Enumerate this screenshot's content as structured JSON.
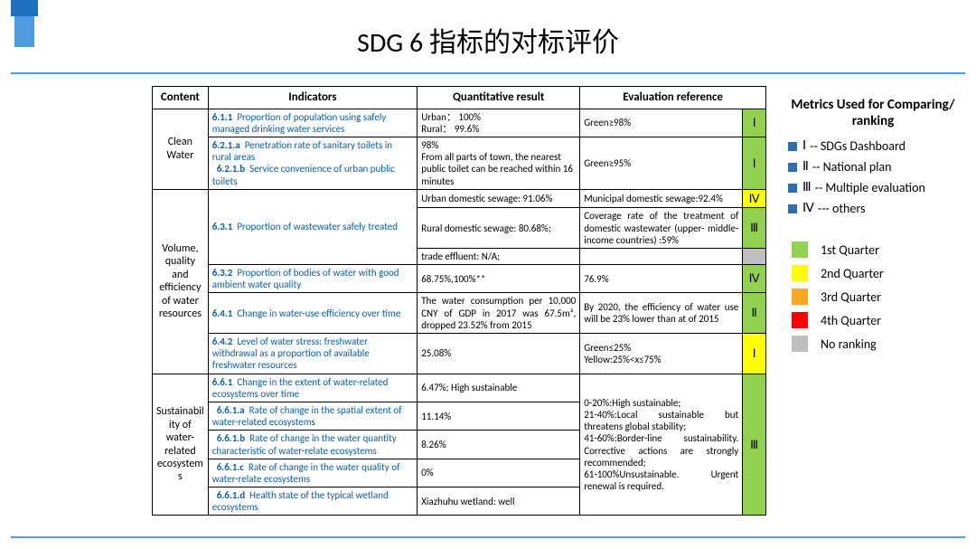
{
  "title": "SDG 6 指标的对标评价",
  "columns": [
    "Content",
    "Indicators",
    "Quantitative result",
    "Evaluation reference"
  ],
  "categories": {
    "cat1": "Clean Water",
    "cat2": "Volume, quality and  efficiency of water resources",
    "cat3": "Sustainability of water-related ecosystems"
  },
  "rows": {
    "r1": {
      "code": "6.1.1",
      "ind": "Proportion of population using safely managed drinking water services",
      "res": "Urban：  100%\nRural：  99.6%",
      "eval": "Green≥98%",
      "tag": "Ⅰ",
      "tag_bg": "bg-green"
    },
    "r2": {
      "code_a": "6.2.1.a",
      "ind_a": "Penetration  rate of sanitary toilets in rural areas",
      "code_b": "6.2.1.b",
      "ind_b": "Service convenience of urban public toilets",
      "res": "98%\nFrom all parts of town, the nearest public toilet can be reached within 16 minutes",
      "eval": "Green≥95%",
      "tag": "Ⅰ",
      "tag_bg": "bg-green"
    },
    "r3a": {
      "code": "6.3.1",
      "ind": "Proportion of wastewater safely treated",
      "res": "Urban domestic sewage: 91.06%",
      "eval": "Municipal domestic sewage:92.4%",
      "tag": "Ⅳ",
      "tag_bg": "bg-yellow"
    },
    "r3b": {
      "res": "Rural domestic sewage: 80.68%;",
      "eval": "Coverage rate of the treatment of domestic wastewater (upper- middle-income countries) :59%",
      "tag": "Ⅲ",
      "tag_bg": "bg-green"
    },
    "r3c": {
      "res": "trade effluent: N/A;",
      "eval": "",
      "tag": "",
      "tag_bg": "bg-gray"
    },
    "r4": {
      "code": "6.3.2",
      "ind": "Proportion of bodies of water with good ambient water quality",
      "res": "68.75%,100%**",
      "eval": "76.9%",
      "tag": "Ⅳ",
      "tag_bg": "bg-green"
    },
    "r5": {
      "code": "6.4.1",
      "ind": "Change in water-use efficiency over time",
      "res": "The water consumption per 10,000 CNY of GDP in 2017 was 67.5m³, dropped 23.52% from 2015",
      "eval": "By 2020, the efficiency of water use will be 23% lower than at of 2015",
      "tag": "Ⅱ",
      "tag_bg": "bg-green"
    },
    "r6": {
      "code": "6.4.2",
      "ind": "Level of water stress: freshwater withdrawal as a proportion of available freshwater resources",
      "res": "25.08%",
      "eval": "Green≤25%\nYellow:25%<x≤75%",
      "tag": "Ⅰ",
      "tag_bg": "bg-yellow"
    },
    "r7": {
      "code": "6.6.1",
      "ind": "Change in the extent of water-related ecosystems over time",
      "res": "6.47%; High sustainable"
    },
    "r8": {
      "code": "6.6.1.a",
      "ind": "Rate of change in the spatial extent of water-related ecosystems",
      "res": "11.14%"
    },
    "r9": {
      "code": "6.6.1.b",
      "ind": "Rate of change in the water  quantity characteristic of water-relate ecosystems",
      "res": "8.26%"
    },
    "r10": {
      "code": "6.6.1.c",
      "ind": "Rate of change in the water  quality  of water-relate ecosystems",
      "res": "0%"
    },
    "r11": {
      "code": "6.6.1.d",
      "ind": "Health state of the  typical wetland ecosystems",
      "res": "Xiazhuhu wetland: well"
    },
    "eco_eval": "0-20%:High sustainable;\n21-40%:Local sustainable but threatens global stability;\n41-60%:Border-line    sustainability. Corrective actions are strongly recommended;\n61-100%Unsustainable. Urgent renewal is required.",
    "eco_tag": "Ⅲ",
    "eco_tag_bg": "bg-green"
  },
  "legend": {
    "header": "Metrics Used for Comparing/ ranking",
    "metrics": [
      {
        "rn": "Ⅰ",
        "sep": " -- ",
        "label": "SDGs Dashboard"
      },
      {
        "rn": "Ⅱ",
        "sep": " -- ",
        "label": "National plan"
      },
      {
        "rn": "Ⅲ",
        "sep": "-- ",
        "label": "Multiple evaluation"
      },
      {
        "rn": "Ⅳ",
        "sep": "--- ",
        "label": "others"
      }
    ],
    "quarters": [
      {
        "swatch": "sw-green",
        "label": "1st  Quarter"
      },
      {
        "swatch": "sw-yellow",
        "label": "2nd  Quarter"
      },
      {
        "swatch": "sw-orange",
        "label": "3rd  Quarter"
      },
      {
        "swatch": "sw-red",
        "label": "4th Quarter"
      },
      {
        "swatch": "sw-gray",
        "label": "No ranking"
      }
    ]
  },
  "colors": {
    "accent_dark": "#1f71bf",
    "accent_light": "#4e9de2",
    "ind_link": "#0b5faf",
    "green": "#92d050",
    "yellow": "#ffff00",
    "orange": "#f7a823",
    "red": "#ff0000",
    "gray": "#bfbfbf",
    "legend_sq": "#2e6db4"
  }
}
